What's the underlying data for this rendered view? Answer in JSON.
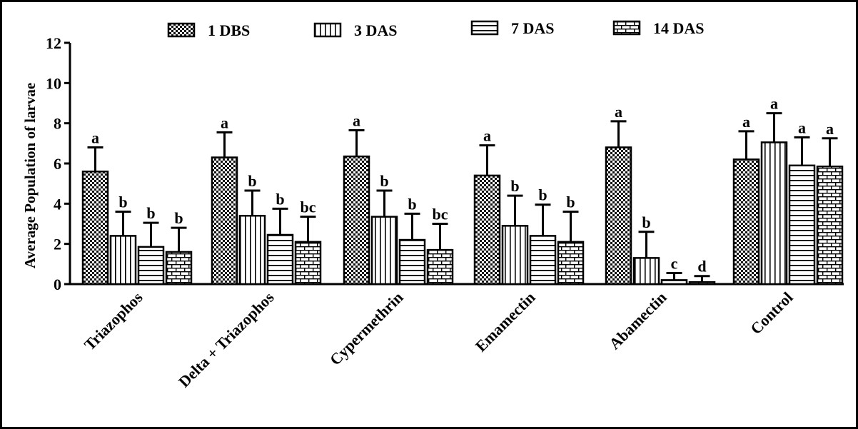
{
  "chart_data": {
    "type": "bar",
    "title": "",
    "xlabel": "",
    "ylabel": "Average Population of larvae",
    "ylim": [
      0,
      12
    ],
    "yticks": [
      0,
      2,
      4,
      6,
      8,
      10,
      12
    ],
    "grid": false,
    "legend_position": "top",
    "categories": [
      "Triazophos",
      "Delta + Triazophos",
      "Cypermethrin",
      "Emamectin",
      "Abamectin",
      "Control"
    ],
    "series": [
      {
        "name": "1 DBS",
        "pattern": "checker",
        "values": [
          5.6,
          6.3,
          6.35,
          5.4,
          6.8,
          6.2
        ],
        "errors": [
          1.2,
          1.25,
          1.3,
          1.5,
          1.3,
          1.4
        ],
        "labels": [
          "a",
          "a",
          "a",
          "a",
          "a",
          "a"
        ]
      },
      {
        "name": "3 DAS",
        "pattern": "vertical",
        "values": [
          2.4,
          3.4,
          3.35,
          2.9,
          1.3,
          7.05
        ],
        "errors": [
          1.2,
          1.25,
          1.3,
          1.5,
          1.3,
          1.45
        ],
        "labels": [
          "b",
          "b",
          "b",
          "b",
          "b",
          "a"
        ]
      },
      {
        "name": "7 DAS",
        "pattern": "horizontal",
        "values": [
          1.85,
          2.45,
          2.2,
          2.4,
          0.2,
          5.9
        ],
        "errors": [
          1.2,
          1.3,
          1.3,
          1.55,
          0.35,
          1.4
        ],
        "labels": [
          "b",
          "b",
          "b",
          "b",
          "c",
          "a"
        ]
      },
      {
        "name": "14 DAS",
        "pattern": "brick",
        "values": [
          1.6,
          2.1,
          1.7,
          2.1,
          0.1,
          5.85
        ],
        "errors": [
          1.2,
          1.25,
          1.3,
          1.5,
          0.3,
          1.4
        ],
        "labels": [
          "b",
          "bc",
          "bc",
          "b",
          "d",
          "a"
        ]
      }
    ]
  }
}
